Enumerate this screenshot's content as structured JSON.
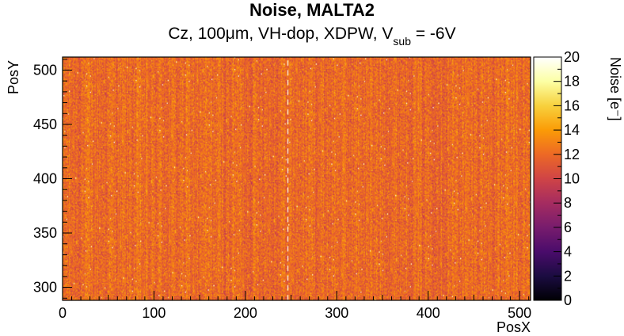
{
  "chart_data": {
    "type": "heatmap",
    "title": "Noise, MALTA2",
    "subtitle": {
      "prefix": "Cz, 100μm, VH-dop, XDPW, V",
      "subscript": "sub",
      "suffix": " = -6V"
    },
    "xlabel": "PosX",
    "ylabel": "PosY",
    "zlabel": "Noise [e⁻]",
    "xlim": [
      0,
      512
    ],
    "ylim": [
      288,
      512
    ],
    "zlim": [
      0,
      20
    ],
    "x_ticks": [
      "0",
      "100",
      "200",
      "300",
      "400",
      "500"
    ],
    "y_ticks": [
      "300",
      "350",
      "400",
      "450",
      "500"
    ],
    "z_ticks": [
      "0",
      "2",
      "4",
      "6",
      "8",
      "10",
      "12",
      "14",
      "16",
      "18",
      "20"
    ],
    "typical_noise": 12,
    "noise_range": [
      9,
      16
    ],
    "hot_column_x": 246,
    "colormap": "inferno",
    "colors": [
      "#000004",
      "#1b0c41",
      "#4a0c6b",
      "#781c6d",
      "#a52c60",
      "#cf4446",
      "#ed6925",
      "#fb9b06",
      "#f7d13d",
      "#fcffa4",
      "#ffffff"
    ]
  }
}
